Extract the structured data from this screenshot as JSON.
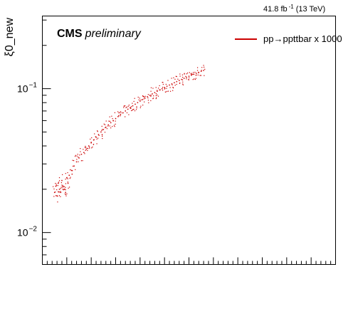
{
  "chart_data": {
    "type": "scatter",
    "title": "",
    "xlabel": "",
    "ylabel": "ξ0_new",
    "y_scale": "log",
    "ylim": [
      0.006,
      0.32
    ],
    "xlim": [
      0,
      12
    ],
    "y_ticklabels": [
      {
        "value": 0.1,
        "base": "10",
        "exp": "−1"
      },
      {
        "value": 0.01,
        "base": "10",
        "exp": "−2"
      }
    ],
    "lumi_label": {
      "main": "41.8 fb",
      "exp": "-1",
      "suffix": "(13 TeV)"
    },
    "cms_label": {
      "bold": "CMS",
      "italic": "preliminary"
    },
    "grid": false,
    "legend_position": "top-right",
    "marker_color": "#cc0000",
    "series": [
      {
        "name": "pp→ppttbar x 1000",
        "x": [
          0.5,
          0.55,
          0.6,
          0.65,
          0.7,
          0.75,
          0.8,
          0.85,
          0.9,
          0.95,
          1.0,
          1.05,
          1.1,
          1.2,
          1.3,
          1.4,
          1.5,
          1.6,
          1.7,
          1.8,
          1.9,
          2.0,
          2.1,
          2.2,
          2.3,
          2.4,
          2.5,
          2.6,
          2.7,
          2.8,
          2.9,
          3.0,
          3.1,
          3.2,
          3.3,
          3.4,
          3.5,
          3.6,
          3.7,
          3.8,
          3.9,
          4.0,
          4.1,
          4.2,
          4.3,
          4.4,
          4.5,
          4.6,
          4.7,
          4.8,
          4.9,
          5.0,
          5.1,
          5.2,
          5.3,
          5.4,
          5.5,
          5.6,
          5.7,
          5.8,
          5.9,
          6.0,
          6.1,
          6.2,
          6.3,
          6.4,
          6.5,
          6.6
        ],
        "y": [
          0.019,
          0.021,
          0.018,
          0.022,
          0.02,
          0.019,
          0.023,
          0.021,
          0.02,
          0.019,
          0.024,
          0.022,
          0.025,
          0.027,
          0.029,
          0.031,
          0.033,
          0.035,
          0.036,
          0.038,
          0.04,
          0.042,
          0.044,
          0.046,
          0.048,
          0.05,
          0.052,
          0.054,
          0.056,
          0.058,
          0.06,
          0.062,
          0.064,
          0.066,
          0.068,
          0.07,
          0.072,
          0.074,
          0.076,
          0.078,
          0.08,
          0.082,
          0.084,
          0.086,
          0.088,
          0.09,
          0.092,
          0.094,
          0.096,
          0.098,
          0.1,
          0.102,
          0.104,
          0.106,
          0.108,
          0.11,
          0.112,
          0.114,
          0.116,
          0.118,
          0.12,
          0.122,
          0.124,
          0.126,
          0.128,
          0.13,
          0.132,
          0.134
        ]
      }
    ]
  }
}
